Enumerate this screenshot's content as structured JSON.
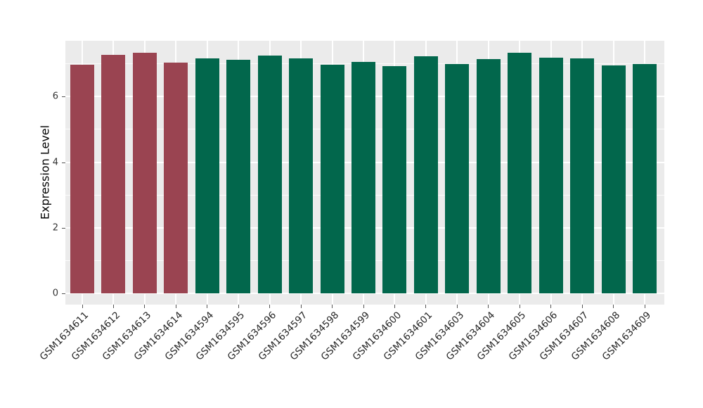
{
  "chart_data": {
    "type": "bar",
    "title": "",
    "xlabel": "",
    "ylabel": "Expression Level",
    "categories": [
      "GSM1634611",
      "GSM1634612",
      "GSM1634613",
      "GSM1634614",
      "GSM1634594",
      "GSM1634595",
      "GSM1634596",
      "GSM1634597",
      "GSM1634598",
      "GSM1634599",
      "GSM1634600",
      "GSM1634601",
      "GSM1634603",
      "GSM1634604",
      "GSM1634605",
      "GSM1634606",
      "GSM1634607",
      "GSM1634608",
      "GSM1634609"
    ],
    "values": [
      6.98,
      7.28,
      7.34,
      7.04,
      7.17,
      7.13,
      7.24,
      7.16,
      6.97,
      7.05,
      6.93,
      7.22,
      6.99,
      7.14,
      7.33,
      7.18,
      7.16,
      6.95,
      7.0
    ],
    "colors": [
      "#9A4451",
      "#9A4451",
      "#9A4451",
      "#9A4451",
      "#02674C",
      "#02674C",
      "#02674C",
      "#02674C",
      "#02674C",
      "#02674C",
      "#02674C",
      "#02674C",
      "#02674C",
      "#02674C",
      "#02674C",
      "#02674C",
      "#02674C",
      "#02674C",
      "#02674C"
    ],
    "group_colors": {
      "highlight": "#9A4451",
      "default": "#02674C"
    },
    "ylim": [
      0,
      7.7
    ],
    "yticks": [
      0,
      2,
      4,
      6
    ],
    "ytick_labels": [
      "0",
      "2",
      "4",
      "6"
    ],
    "grid": "on",
    "legend": "none",
    "panel_background": "#EBEBEB",
    "gridline_color": "#FFFFFF",
    "x_label_rotation_deg": 45
  }
}
